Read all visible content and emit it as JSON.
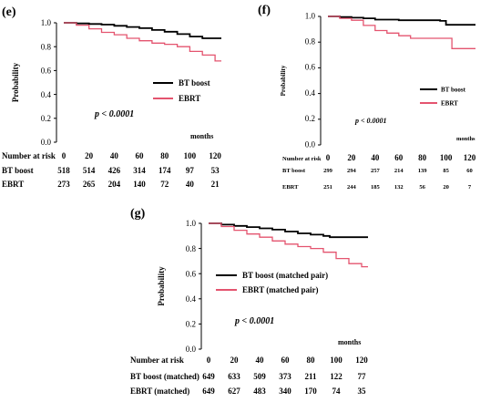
{
  "colors": {
    "bt": "#000000",
    "ebrt": "#e4546f",
    "axis": "#000000"
  },
  "chart_data": [
    {
      "type": "line",
      "panel_label": "(e)",
      "ylabel": "Probability",
      "xlabel": "months",
      "y_ticks": [
        "0.0",
        "0.2",
        "0.4",
        "0.6",
        "0.8",
        "1.0"
      ],
      "x_ticks": [
        "0",
        "20",
        "40",
        "60",
        "80",
        "100",
        "120"
      ],
      "xlim": [
        0,
        125
      ],
      "ylim": [
        0,
        1
      ],
      "p_value": "p < 0.0001",
      "risk_header": "Number at risk",
      "series": [
        {
          "name": "BT boost",
          "x": [
            0,
            10,
            20,
            30,
            40,
            50,
            60,
            70,
            80,
            90,
            100,
            110,
            125
          ],
          "y": [
            1.0,
            0.995,
            0.99,
            0.985,
            0.975,
            0.965,
            0.955,
            0.94,
            0.925,
            0.905,
            0.885,
            0.87,
            0.87
          ],
          "risk_label": "BT boost",
          "risk": [
            "518",
            "514",
            "426",
            "314",
            "174",
            "97",
            "53"
          ]
        },
        {
          "name": "EBRT",
          "x": [
            0,
            10,
            20,
            30,
            40,
            50,
            60,
            70,
            80,
            90,
            100,
            110,
            120,
            125
          ],
          "y": [
            1.0,
            0.98,
            0.95,
            0.92,
            0.9,
            0.87,
            0.85,
            0.83,
            0.82,
            0.8,
            0.76,
            0.73,
            0.68,
            0.68
          ],
          "risk_label": "EBRT",
          "risk": [
            "273",
            "265",
            "204",
            "140",
            "72",
            "40",
            "21"
          ]
        }
      ]
    },
    {
      "type": "line",
      "panel_label": "(f)",
      "ylabel": "Probability",
      "xlabel": "months",
      "y_ticks": [
        "0.0",
        "0.2",
        "0.4",
        "0.6",
        "0.8",
        "1.0"
      ],
      "x_ticks": [
        "0",
        "20",
        "40",
        "60",
        "80",
        "100",
        "120"
      ],
      "xlim": [
        0,
        125
      ],
      "ylim": [
        0,
        1
      ],
      "p_value": "p < 0.0001",
      "risk_header": "Number at risk",
      "series": [
        {
          "name": "BT boost",
          "x": [
            0,
            10,
            20,
            30,
            40,
            60,
            80,
            95,
            100,
            125
          ],
          "y": [
            1.0,
            0.995,
            0.99,
            0.985,
            0.975,
            0.97,
            0.97,
            0.965,
            0.935,
            0.935
          ],
          "risk_label": "BT boost",
          "risk": [
            "299",
            "294",
            "257",
            "214",
            "139",
            "85",
            "60"
          ]
        },
        {
          "name": "EBRT",
          "x": [
            0,
            10,
            20,
            30,
            40,
            50,
            60,
            70,
            80,
            90,
            100,
            105,
            125
          ],
          "y": [
            1.0,
            0.985,
            0.97,
            0.93,
            0.89,
            0.87,
            0.85,
            0.83,
            0.83,
            0.83,
            0.83,
            0.75,
            0.75
          ],
          "risk_label": "EBRT",
          "risk": [
            "251",
            "244",
            "185",
            "132",
            "56",
            "20",
            "7"
          ]
        }
      ]
    },
    {
      "type": "line",
      "panel_label": "(g)",
      "ylabel": "Probability",
      "xlabel": "months",
      "y_ticks": [
        "0.0",
        "0.2",
        "0.4",
        "0.6",
        "0.8",
        "1.0"
      ],
      "x_ticks": [
        "0",
        "20",
        "40",
        "60",
        "80",
        "100",
        "120"
      ],
      "xlim": [
        0,
        125
      ],
      "ylim": [
        0,
        1
      ],
      "p_value": "p < 0.0001",
      "risk_header": "Number at risk",
      "series": [
        {
          "name": "BT boost (matched pair)",
          "x": [
            0,
            10,
            20,
            30,
            40,
            50,
            60,
            70,
            80,
            90,
            95,
            125
          ],
          "y": [
            1.0,
            0.99,
            0.98,
            0.97,
            0.96,
            0.95,
            0.935,
            0.92,
            0.91,
            0.9,
            0.89,
            0.89
          ],
          "risk_label": "BT boost (matched)",
          "risk": [
            "649",
            "633",
            "509",
            "373",
            "211",
            "122",
            "77"
          ]
        },
        {
          "name": "EBRT (matched pair)",
          "x": [
            0,
            10,
            20,
            30,
            40,
            50,
            60,
            70,
            80,
            90,
            100,
            110,
            120,
            125
          ],
          "y": [
            1.0,
            0.975,
            0.945,
            0.915,
            0.89,
            0.86,
            0.835,
            0.815,
            0.8,
            0.77,
            0.72,
            0.68,
            0.655,
            0.655
          ],
          "risk_label": "EBRT (matched)",
          "risk": [
            "649",
            "627",
            "483",
            "340",
            "170",
            "74",
            "35"
          ]
        }
      ]
    }
  ]
}
